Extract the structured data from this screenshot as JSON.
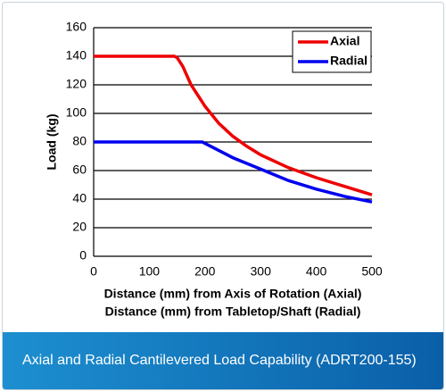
{
  "chart_data": {
    "type": "line",
    "ylabel": "Load (kg)",
    "xlabel": [
      "Distance (mm) from Axis of Rotation (Axial)",
      "Distance (mm) from Tabletop/Shaft (Radial)"
    ],
    "xlim": [
      0,
      500
    ],
    "xticks": [
      0,
      100,
      200,
      300,
      400,
      500
    ],
    "ylim": [
      0,
      160
    ],
    "yticks": [
      0,
      20,
      40,
      60,
      80,
      100,
      120,
      140,
      160
    ],
    "grid": true,
    "legend": "upper right",
    "series": [
      {
        "name": "Axial",
        "color": "#ee0000",
        "x": [
          0,
          145,
          150,
          160,
          175,
          200,
          225,
          250,
          275,
          300,
          350,
          400,
          450,
          500
        ],
        "values": [
          140,
          140,
          139,
          133,
          120,
          105,
          93,
          84,
          77,
          71,
          62,
          55,
          49,
          43
        ]
      },
      {
        "name": "Radial",
        "color": "#0000ee",
        "x": [
          0,
          195,
          200,
          225,
          250,
          275,
          300,
          350,
          400,
          450,
          500
        ],
        "values": [
          80,
          80,
          79,
          74,
          69,
          65,
          61,
          53,
          47,
          42,
          38
        ]
      }
    ]
  },
  "caption": "Axial and Radial Cantilevered Load Capability (ADRT200-155)"
}
